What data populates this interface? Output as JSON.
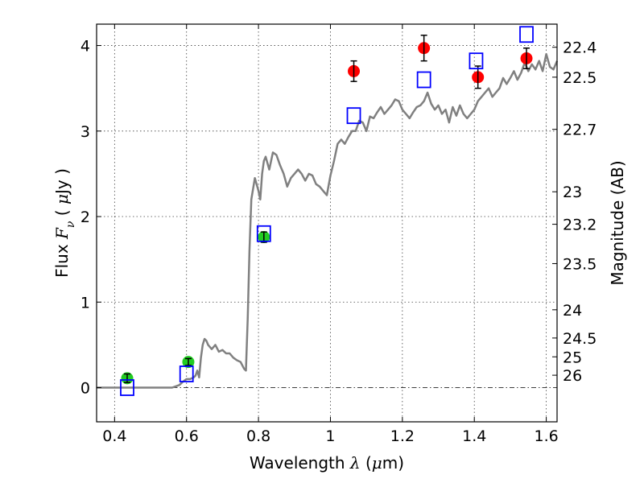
{
  "chart_data": {
    "type": "scatter",
    "title": "",
    "xlabel": "Wavelength  λ (μm)",
    "xlabel_parts": [
      "Wavelength  ",
      "λ",
      " (",
      "μ",
      "m)"
    ],
    "ylabel": "Flux  Fν  ( μJy )",
    "ylabel_parts": [
      "Flux  ",
      "F",
      "ν",
      "  ( ",
      "μ",
      "Jy )"
    ],
    "y2label": "Magnitude (AB)",
    "xlim": [
      0.35,
      1.63
    ],
    "ylim": [
      -0.4,
      4.25
    ],
    "xticks": [
      0.4,
      0.6,
      0.8,
      1.0,
      1.2,
      1.4,
      1.6
    ],
    "xtick_labels": [
      "0.4",
      "0.6",
      "0.8",
      "1",
      "1.2",
      "1.4",
      "1.6"
    ],
    "yticks": [
      0,
      1,
      2,
      3,
      4
    ],
    "ytick_labels": [
      "0",
      "1",
      "2",
      "3",
      "4"
    ],
    "y2ticks": [
      {
        "label": "22.4",
        "flux": 3.98
      },
      {
        "label": "22.5",
        "flux": 3.63
      },
      {
        "label": "22.7",
        "flux": 3.02
      },
      {
        "label": "23",
        "flux": 2.29
      },
      {
        "label": "23.2",
        "flux": 1.91
      },
      {
        "label": "23.5",
        "flux": 1.45
      },
      {
        "label": "24",
        "flux": 0.91
      },
      {
        "label": "24.5",
        "flux": 0.58
      },
      {
        "label": "25",
        "flux": 0.36
      },
      {
        "label": "26",
        "flux": 0.145
      }
    ],
    "grid": true,
    "colors": {
      "model": "#808080",
      "red_points": "#ff0000",
      "green_points": "#22cc22",
      "model_photometry": "#0000ff",
      "errorbar": "#000000"
    },
    "series": [
      {
        "kind": "line",
        "x": [
          0.35,
          0.56,
          0.58,
          0.59,
          0.6,
          0.61,
          0.62,
          0.625,
          0.63,
          0.635,
          0.64,
          0.645,
          0.65,
          0.655,
          0.66,
          0.67,
          0.68,
          0.69,
          0.7,
          0.71,
          0.72,
          0.73,
          0.74,
          0.75,
          0.76,
          0.765,
          0.77,
          0.775,
          0.78,
          0.79,
          0.8,
          0.805,
          0.81,
          0.815,
          0.82,
          0.83,
          0.84,
          0.85,
          0.86,
          0.87,
          0.88,
          0.89,
          0.9,
          0.91,
          0.92,
          0.93,
          0.94,
          0.95,
          0.96,
          0.97,
          0.98,
          0.99,
          1.0,
          1.01,
          1.02,
          1.03,
          1.04,
          1.05,
          1.06,
          1.07,
          1.08,
          1.09,
          1.1,
          1.11,
          1.12,
          1.13,
          1.14,
          1.15,
          1.16,
          1.17,
          1.18,
          1.19,
          1.2,
          1.21,
          1.22,
          1.23,
          1.24,
          1.25,
          1.26,
          1.27,
          1.28,
          1.29,
          1.3,
          1.31,
          1.32,
          1.33,
          1.34,
          1.35,
          1.36,
          1.37,
          1.38,
          1.39,
          1.4,
          1.41,
          1.42,
          1.43,
          1.44,
          1.45,
          1.46,
          1.47,
          1.48,
          1.49,
          1.5,
          1.51,
          1.52,
          1.53,
          1.54,
          1.55,
          1.56,
          1.57,
          1.58,
          1.59,
          1.6,
          1.61,
          1.62,
          1.63
        ],
        "y": [
          0.0,
          0.0,
          0.03,
          0.07,
          0.1,
          0.1,
          0.12,
          0.14,
          0.2,
          0.12,
          0.35,
          0.5,
          0.57,
          0.55,
          0.5,
          0.45,
          0.5,
          0.42,
          0.44,
          0.4,
          0.4,
          0.35,
          0.32,
          0.3,
          0.22,
          0.2,
          0.8,
          1.6,
          2.2,
          2.45,
          2.3,
          2.2,
          2.5,
          2.65,
          2.7,
          2.55,
          2.75,
          2.72,
          2.6,
          2.5,
          2.35,
          2.45,
          2.5,
          2.55,
          2.5,
          2.42,
          2.5,
          2.48,
          2.38,
          2.35,
          2.3,
          2.25,
          2.48,
          2.65,
          2.85,
          2.9,
          2.85,
          2.93,
          3.0,
          3.0,
          3.12,
          3.1,
          3.0,
          3.17,
          3.15,
          3.22,
          3.28,
          3.2,
          3.25,
          3.3,
          3.37,
          3.35,
          3.25,
          3.2,
          3.15,
          3.22,
          3.28,
          3.3,
          3.35,
          3.45,
          3.32,
          3.25,
          3.3,
          3.2,
          3.25,
          3.1,
          3.28,
          3.18,
          3.3,
          3.2,
          3.15,
          3.2,
          3.25,
          3.35,
          3.4,
          3.45,
          3.5,
          3.4,
          3.45,
          3.5,
          3.62,
          3.55,
          3.62,
          3.7,
          3.6,
          3.68,
          3.8,
          3.7,
          3.78,
          3.72,
          3.82,
          3.7,
          3.9,
          3.75,
          3.72,
          3.82
        ],
        "color": "#808080"
      },
      {
        "kind": "points",
        "marker": "circle",
        "color": "#ff0000",
        "x": [
          1.065,
          1.26,
          1.41,
          1.545
        ],
        "y": [
          3.7,
          3.97,
          3.63,
          3.85
        ],
        "yerr": [
          0.12,
          0.15,
          0.13,
          0.12
        ]
      },
      {
        "kind": "points",
        "marker": "circle",
        "color": "#22cc22",
        "x": [
          0.435,
          0.605,
          0.815
        ],
        "y": [
          0.11,
          0.3,
          1.76
        ],
        "yerr": [
          0.05,
          0.04,
          0.06
        ]
      },
      {
        "kind": "points",
        "marker": "square-open",
        "color": "#0000ff",
        "x": [
          0.435,
          0.6,
          0.815,
          1.065,
          1.26,
          1.405,
          1.545
        ],
        "y": [
          0.0,
          0.16,
          1.8,
          3.18,
          3.6,
          3.82,
          4.13
        ]
      }
    ]
  }
}
